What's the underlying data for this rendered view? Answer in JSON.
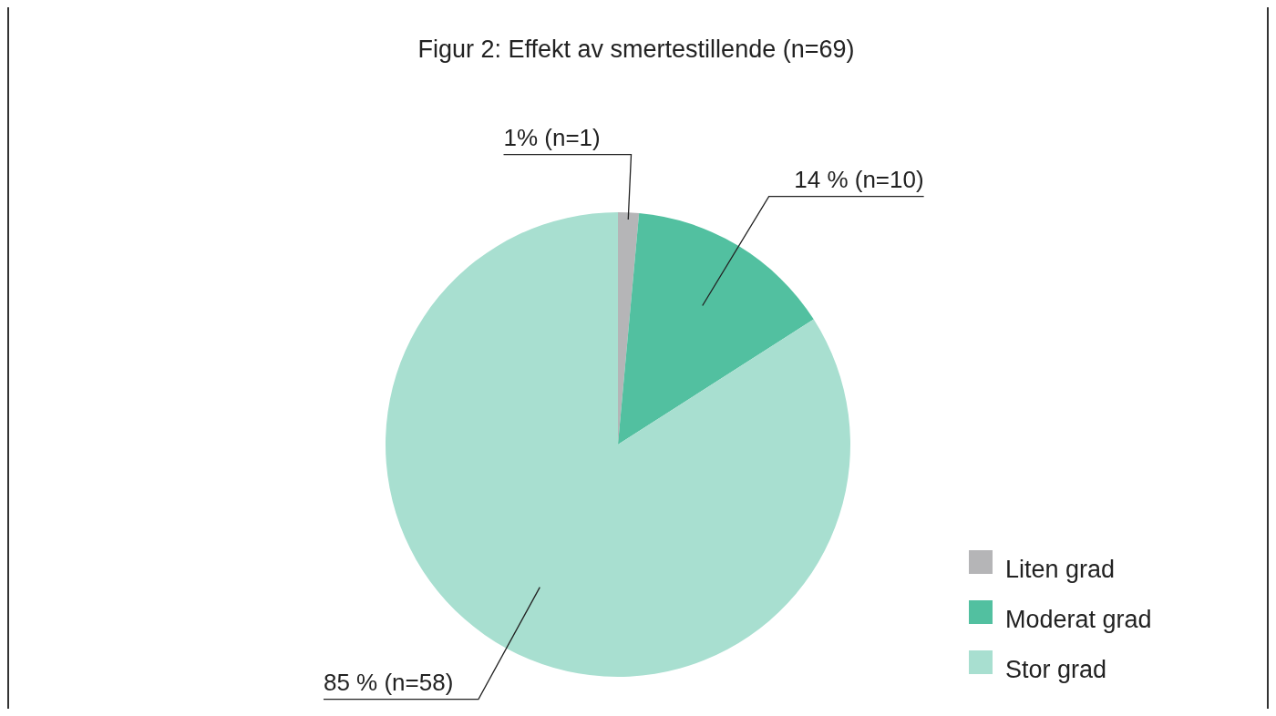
{
  "chart_data": {
    "type": "pie",
    "title": "Figur 2: Effekt av smertestillende (n=69)",
    "categories": [
      "Liten grad",
      "Moderat grad",
      "Stor grad"
    ],
    "values": [
      1,
      10,
      58
    ],
    "colors": [
      "#b5b5b7",
      "#52c0a0",
      "#a8dfd0"
    ],
    "value_labels": [
      "1% (n=1)",
      "14 % (n=10)",
      "85 % (n=58)"
    ],
    "legend": "bottom right"
  }
}
